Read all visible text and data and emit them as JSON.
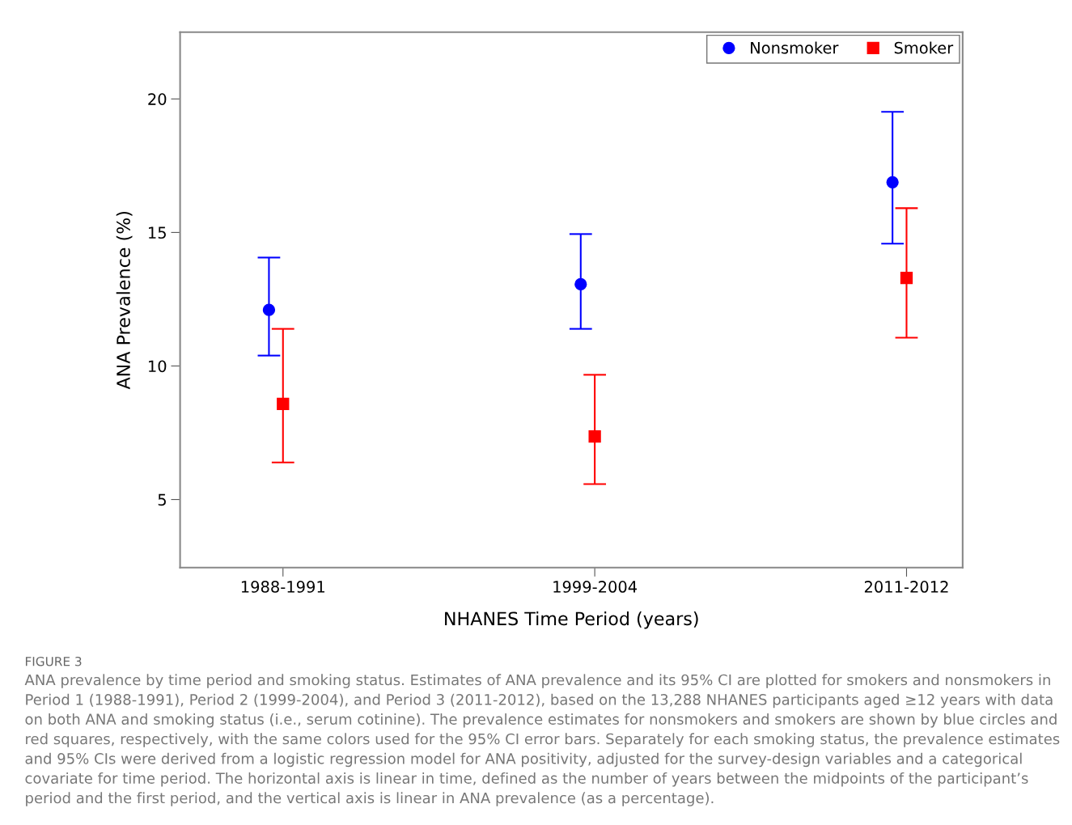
{
  "chart_data": {
    "type": "scatter",
    "xlabel": "NHANES Time Period (years)",
    "ylabel": "ANA Prevalence (%)",
    "categories": [
      "1988-1991",
      "1999-2004",
      "2011-2012"
    ],
    "ylim": [
      2.45,
      22.5
    ],
    "yticks": [
      5,
      10,
      15,
      20
    ],
    "grid": false,
    "legend": "top right",
    "series": [
      {
        "name": "Nonsmoker",
        "color": "#0000ff",
        "marker": "circle",
        "values": [
          12.1,
          13.06,
          16.88
        ],
        "errors": [
          [
            10.39,
            14.06
          ],
          [
            11.39,
            14.94
          ],
          [
            14.58,
            19.52
          ]
        ]
      },
      {
        "name": "Smoker",
        "color": "#ff0000",
        "marker": "square",
        "values": [
          8.58,
          7.36,
          13.3
        ],
        "errors": [
          [
            6.39,
            11.39
          ],
          [
            5.58,
            9.67
          ],
          [
            11.06,
            15.91
          ]
        ]
      }
    ],
    "annotations": [
      "FIGURE 3",
      "ANA prevalence by time period and smoking status. Estimates of ANA prevalence and its 95% CI are plotted for smokers and nonsmokers in Period 1 (1988-1991), Period 2 (1999-2004), and Period 3 (2011-2012), based on the 13,288 NHANES participants aged ≥12 years with data on both ANA and smoking status (i.e., serum cotinine). The prevalence estimates for nonsmokers and smokers are shown by blue circles and red squares, respectively, with the same colors used for the 95% CI error bars. Separately for each smoking status, the prevalence estimates and 95% CIs were derived from a logistic regression model for ANA positivity, adjusted for the survey-design variables and a categorical covariate for time period. The horizontal axis is linear in time, defined as the number of years between the midpoints of the participant’s period and the first period, and the vertical axis is linear in ANA prevalence (as a percentage)."
    ]
  }
}
